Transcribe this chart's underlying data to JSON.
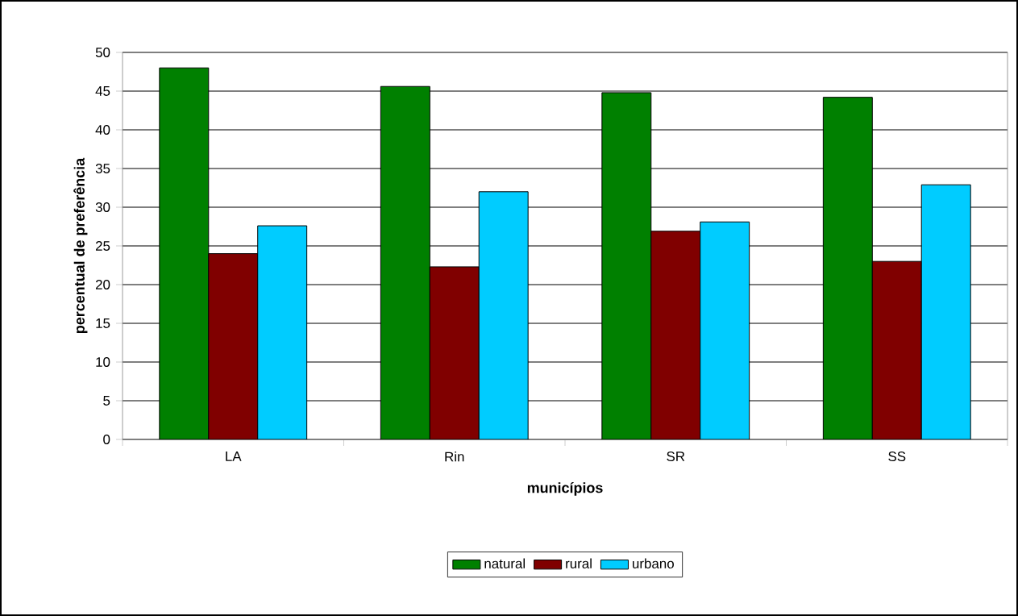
{
  "chart_data": {
    "type": "bar",
    "xlabel": "municípios",
    "ylabel": "percentual de preferência",
    "categories": [
      "LA",
      "Rin",
      "SR",
      "SS"
    ],
    "series": [
      {
        "name": "natural",
        "color": "#008000",
        "values": [
          48.0,
          45.6,
          44.8,
          44.2
        ]
      },
      {
        "name": "rural",
        "color": "#800000",
        "values": [
          24.0,
          22.3,
          26.9,
          23.0
        ]
      },
      {
        "name": "urbano",
        "color": "#00ccff",
        "values": [
          27.6,
          32.0,
          28.1,
          32.9
        ]
      }
    ],
    "ylim": [
      0,
      50
    ],
    "yticks": [
      0,
      5,
      10,
      15,
      20,
      25,
      30,
      35,
      40,
      45,
      50
    ],
    "grid": "y",
    "legend": "bottom"
  }
}
